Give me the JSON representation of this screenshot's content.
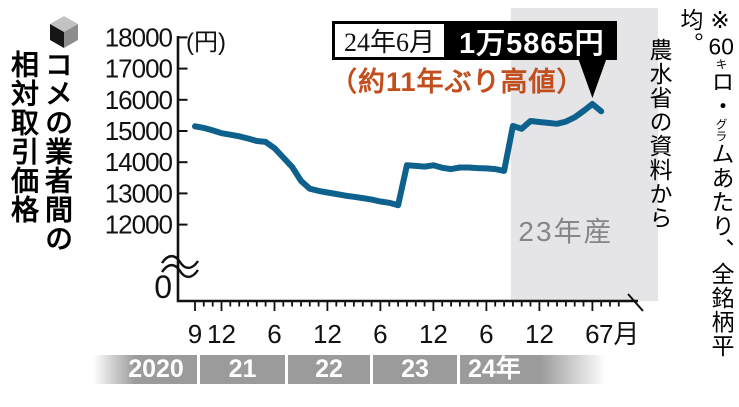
{
  "title": {
    "col1": "コメの業者間の",
    "col2": "相対取引価格"
  },
  "unit_label": "(円)",
  "annotation": {
    "date_box": "24年6月",
    "price_box": "1万5865円",
    "subnote": "（約11年ぶり高値）"
  },
  "shade_label": "23年産",
  "year_bands": [
    "2020",
    "21",
    "22",
    "23",
    "24年"
  ],
  "side_note": {
    "prefix": "※",
    "num": "60",
    "small1": "キ",
    "mid1": "ロ・",
    "small2": "グラ",
    "mid2": "ム",
    "suffix": "あたり、全銘柄平均。",
    "line2": "農水省の資料から"
  },
  "axis": {
    "y_ticks": [
      "18000",
      "17000",
      "16000",
      "15000",
      "14000",
      "13000",
      "12000"
    ],
    "y_zero_label": "0",
    "x_ticks": [
      {
        "index": 0,
        "label": "9"
      },
      {
        "index": 3,
        "label": "12"
      },
      {
        "index": 9,
        "label": "6"
      },
      {
        "index": 15,
        "label": "12"
      },
      {
        "index": 21,
        "label": "6"
      },
      {
        "index": 27,
        "label": "12"
      },
      {
        "index": 33,
        "label": "6"
      },
      {
        "index": 39,
        "label": "12"
      },
      {
        "index": 45,
        "label": "6"
      },
      {
        "index": 46,
        "label": "7月",
        "dx": 18
      }
    ]
  },
  "colors": {
    "line": "#0f618d",
    "shade": "#e5e5e7",
    "band": "#9b9b9b",
    "accent_orange": "#c14e1c",
    "black": "#000000",
    "shade_label_gray": "#85858a"
  },
  "chart_data": {
    "type": "line",
    "title": "コメの業者間の相対取引価格",
    "unit": "円",
    "note": "※60キロ・グラムあたり、全銘柄平均。農水省の資料から",
    "ylabel": "(円)",
    "y_visible_range": [
      12000,
      18000
    ],
    "y_axis_break_to_zero": true,
    "x": [
      "2020-09",
      "2020-10",
      "2020-11",
      "2020-12",
      "2021-01",
      "2021-02",
      "2021-03",
      "2021-04",
      "2021-05",
      "2021-06",
      "2021-07",
      "2021-08",
      "2021-09",
      "2021-10",
      "2021-11",
      "2021-12",
      "2022-01",
      "2022-02",
      "2022-03",
      "2022-04",
      "2022-05",
      "2022-06",
      "2022-07",
      "2022-08",
      "2022-09",
      "2022-10",
      "2022-11",
      "2022-12",
      "2023-01",
      "2023-02",
      "2023-03",
      "2023-04",
      "2023-05",
      "2023-06",
      "2023-07",
      "2023-08",
      "2023-09",
      "2023-10",
      "2023-11",
      "2023-12",
      "2024-01",
      "2024-02",
      "2024-03",
      "2024-04",
      "2024-05",
      "2024-06",
      "2024-07"
    ],
    "values": [
      15150,
      15100,
      15020,
      14930,
      14880,
      14830,
      14760,
      14680,
      14650,
      14450,
      14150,
      13850,
      13400,
      13150,
      13080,
      13030,
      12980,
      12930,
      12890,
      12850,
      12800,
      12740,
      12700,
      12620,
      13900,
      13880,
      13860,
      13900,
      13820,
      13780,
      13830,
      13830,
      13810,
      13800,
      13780,
      13720,
      15160,
      15070,
      15320,
      15290,
      15260,
      15230,
      15300,
      15440,
      15640,
      15865,
      15630
    ],
    "highlight": {
      "x": "2024-06",
      "value": 15865,
      "label": "24年6月 1万5865円（約11年ぶり高値）"
    },
    "shaded_region": {
      "label": "23年産",
      "from": "2023-09"
    }
  }
}
